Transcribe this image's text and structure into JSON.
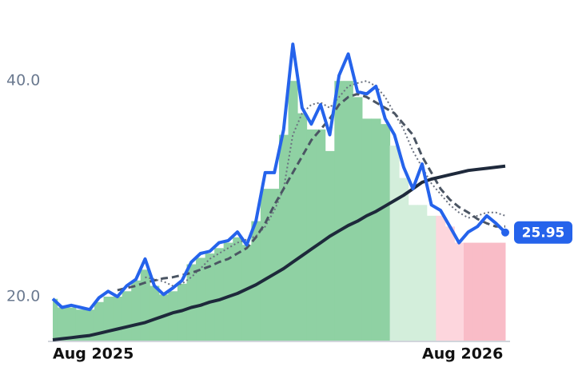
{
  "chart_data": {
    "type": "line",
    "categories": [
      "Aug 2025",
      null,
      null,
      null,
      null,
      null,
      null,
      null,
      null,
      null,
      null,
      null,
      null,
      null,
      null,
      null,
      null,
      null,
      null,
      null,
      null,
      null,
      null,
      null,
      null,
      null,
      null,
      null,
      null,
      null,
      null,
      null,
      null,
      null,
      null,
      null,
      null,
      null,
      null,
      null,
      "Aug 2026",
      null,
      null,
      null,
      null,
      null,
      null,
      null,
      null,
      null
    ],
    "ylim": [
      15.85,
      47.5
    ],
    "yticks": [
      {
        "value": 20,
        "label": "20.0"
      },
      {
        "value": 40,
        "label": "40.0"
      }
    ],
    "grid": false,
    "bars": {
      "values": [
        19.8,
        19,
        19,
        18.8,
        18.8,
        19.5,
        20,
        20,
        20.5,
        21.5,
        22.5,
        21,
        20.2,
        20.5,
        21.2,
        23,
        23.6,
        24,
        24.5,
        25,
        25.5,
        24.8,
        27,
        30,
        30,
        35,
        40,
        37,
        35.5,
        35.5,
        33.5,
        40,
        40,
        38.5,
        36.5,
        36.5,
        36,
        34,
        31,
        28.5,
        28.5,
        27.5,
        27.5,
        26.5,
        25,
        25,
        25,
        25,
        25,
        25
      ],
      "colors": [
        "#8fd1a3",
        "#8fd1a3",
        "#8fd1a3",
        "#8fd1a3",
        "#8fd1a3",
        "#8fd1a3",
        "#8fd1a3",
        "#8fd1a3",
        "#8fd1a3",
        "#8fd1a3",
        "#8fd1a3",
        "#8fd1a3",
        "#8fd1a3",
        "#8fd1a3",
        "#8fd1a3",
        "#8fd1a3",
        "#8fd1a3",
        "#8fd1a3",
        "#8fd1a3",
        "#8fd1a3",
        "#8fd1a3",
        "#8fd1a3",
        "#8fd1a3",
        "#8fd1a3",
        "#8fd1a3",
        "#8fd1a3",
        "#8fd1a3",
        "#8fd1a3",
        "#8fd1a3",
        "#8fd1a3",
        "#8fd1a3",
        "#8fd1a3",
        "#8fd1a3",
        "#8fd1a3",
        "#8fd1a3",
        "#8fd1a3",
        "#8fd1a3",
        "#d3eedb",
        "#d3eedb",
        "#d3eedb",
        "#d3eedb",
        "#d3eedb",
        "#fdd6dd",
        "#fdd6dd",
        "#fdd6dd",
        "#f9bcc7",
        "#f9bcc7",
        "#f9bcc7",
        "#f9bcc7",
        "#f9bcc7"
      ]
    },
    "series": [
      {
        "color": "#6b7280",
        "style": "dotted",
        "width": 2,
        "values": [
          null,
          null,
          null,
          null,
          null,
          null,
          null,
          null,
          null,
          null,
          21.8,
          21.6,
          21.4,
          21.0,
          21.2,
          21.8,
          22.6,
          23.5,
          24.0,
          24.5,
          25.0,
          25.3,
          25.6,
          26.5,
          28.0,
          30.0,
          35.0,
          37.0,
          37.8,
          38.0,
          37.5,
          38.5,
          39.5,
          39.8,
          40.0,
          39.5,
          38.5,
          37.0,
          35.5,
          33.5,
          32.0,
          30.5,
          29.5,
          28.5,
          27.8,
          27.3,
          27.5,
          27.8,
          27.8,
          27.5
        ]
      },
      {
        "color": "#4b5563",
        "style": "dashed",
        "width": 3,
        "values": [
          null,
          null,
          null,
          null,
          null,
          null,
          null,
          20.6,
          20.8,
          21.0,
          21.3,
          21.5,
          21.7,
          21.8,
          22.0,
          22.2,
          22.5,
          22.8,
          23.2,
          23.5,
          24.0,
          24.5,
          25.5,
          26.8,
          28.5,
          30.0,
          31.5,
          33.0,
          34.5,
          35.5,
          36.5,
          37.8,
          38.5,
          38.8,
          38.5,
          38.0,
          37.5,
          37.0,
          36.0,
          35.0,
          33.0,
          31.5,
          30.0,
          29.0,
          28.3,
          27.8,
          27.2,
          26.8,
          26.5,
          26.5
        ]
      },
      {
        "color": "#1e293b",
        "style": "solid",
        "width": 4,
        "values": [
          16.0,
          16.1,
          16.2,
          16.3,
          16.4,
          16.6,
          16.8,
          17.0,
          17.2,
          17.4,
          17.6,
          17.9,
          18.2,
          18.5,
          18.7,
          19.0,
          19.2,
          19.5,
          19.7,
          20.0,
          20.3,
          20.7,
          21.1,
          21.6,
          22.1,
          22.6,
          23.2,
          23.8,
          24.4,
          25.0,
          25.6,
          26.1,
          26.6,
          27.0,
          27.5,
          27.9,
          28.4,
          28.9,
          29.4,
          30.0,
          30.6,
          30.9,
          31.1,
          31.3,
          31.5,
          31.7,
          31.8,
          31.9,
          32.0,
          32.1
        ]
      },
      {
        "color": "#2563eb",
        "style": "solid",
        "width": 4,
        "values": [
          19.8,
          19.0,
          19.2,
          19.0,
          18.8,
          19.9,
          20.5,
          20.0,
          21.0,
          21.6,
          23.5,
          21.0,
          20.2,
          20.8,
          21.5,
          23.2,
          24.0,
          24.2,
          25.0,
          25.2,
          26.0,
          24.8,
          27.0,
          31.5,
          31.5,
          35.5,
          43.4,
          37.5,
          36.0,
          37.8,
          35.0,
          40.5,
          42.5,
          39.0,
          38.8,
          39.5,
          36.5,
          35.0,
          32.0,
          30.0,
          32.3,
          28.5,
          28.0,
          26.5,
          25.0,
          26.0,
          26.5,
          27.5,
          26.8,
          25.95
        ],
        "last_label": "25.95"
      }
    ]
  }
}
